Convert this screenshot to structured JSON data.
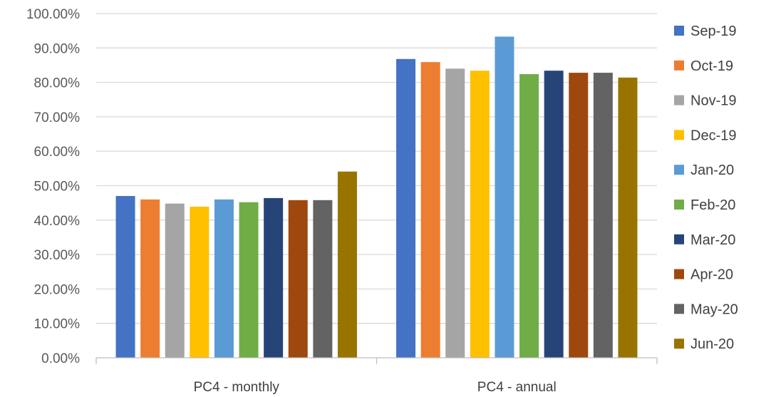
{
  "chart_data": {
    "type": "bar",
    "categories": [
      "PC4 - monthly",
      "PC4 - annual"
    ],
    "ylim": [
      0,
      100
    ],
    "yticks": [
      "0.00%",
      "10.00%",
      "20.00%",
      "30.00%",
      "40.00%",
      "50.00%",
      "60.00%",
      "70.00%",
      "80.00%",
      "90.00%",
      "100.00%"
    ],
    "grid": true,
    "legend_position": "right",
    "series": [
      {
        "name": "Sep-19",
        "color": "#4472C4",
        "values": [
          47.0,
          86.8
        ]
      },
      {
        "name": "Oct-19",
        "color": "#ED7D31",
        "values": [
          46.0,
          85.9
        ]
      },
      {
        "name": "Nov-19",
        "color": "#A5A5A5",
        "values": [
          44.8,
          84.0
        ]
      },
      {
        "name": "Dec-19",
        "color": "#FFC000",
        "values": [
          43.9,
          83.4
        ]
      },
      {
        "name": "Jan-20",
        "color": "#5B9BD5",
        "values": [
          46.0,
          93.3
        ]
      },
      {
        "name": "Feb-20",
        "color": "#70AD47",
        "values": [
          45.2,
          82.4
        ]
      },
      {
        "name": "Mar-20",
        "color": "#264478",
        "values": [
          46.4,
          83.4
        ]
      },
      {
        "name": "Apr-20",
        "color": "#9E480E",
        "values": [
          45.8,
          82.8
        ]
      },
      {
        "name": "May-20",
        "color": "#636363",
        "values": [
          45.8,
          82.8
        ]
      },
      {
        "name": "Jun-20",
        "color": "#997300",
        "values": [
          54.1,
          81.4
        ]
      }
    ]
  }
}
